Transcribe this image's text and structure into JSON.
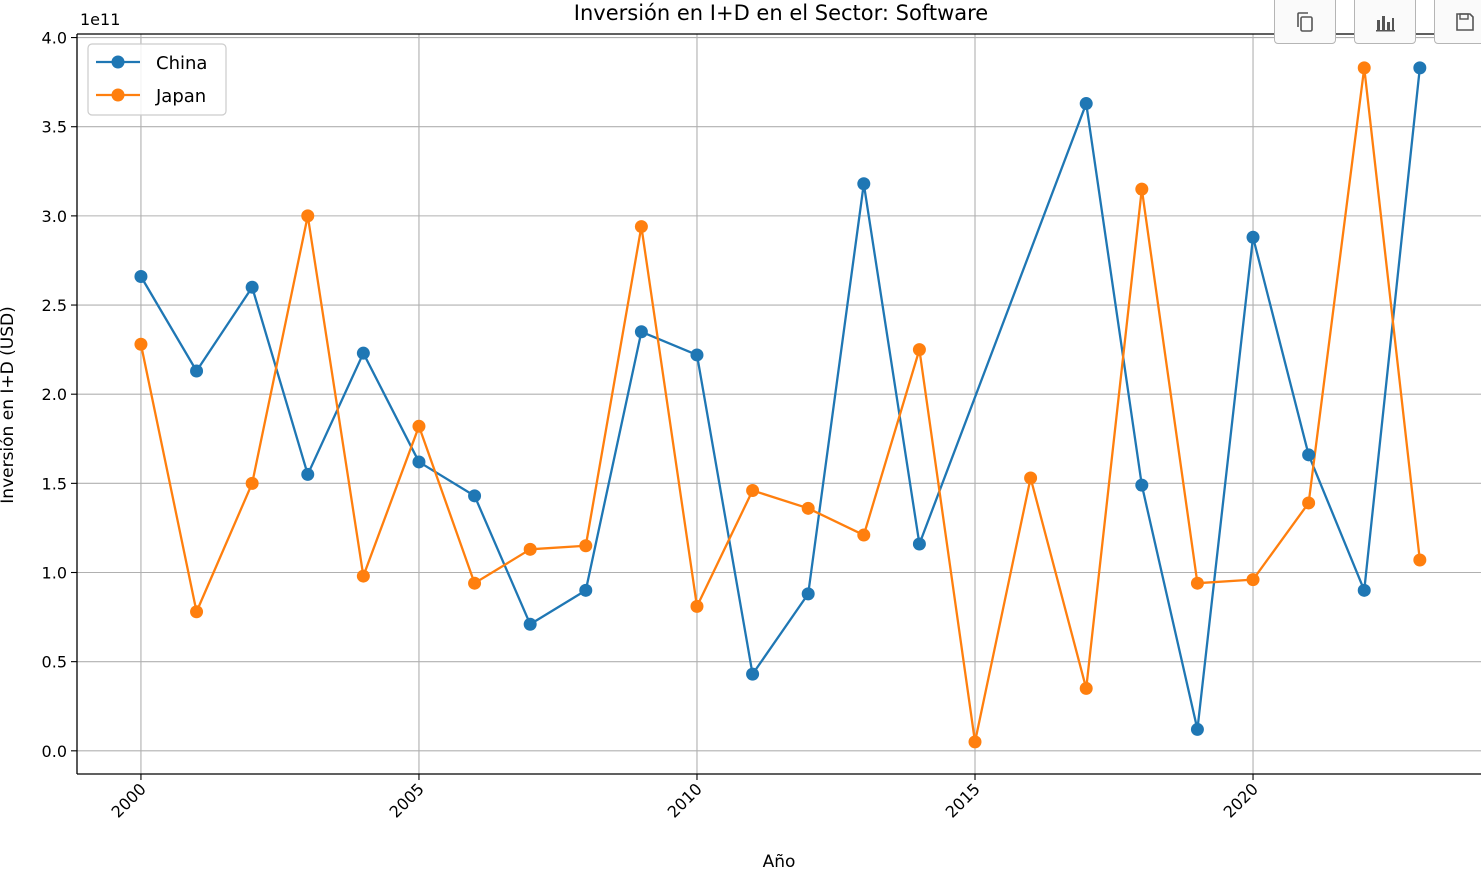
{
  "chart_data": {
    "type": "line",
    "title": "Inversión en I+D en el Sector: Software",
    "xlabel": "Año",
    "ylabel": "Inversión en I+D (USD)",
    "y_offset_label": "1e11",
    "y_scale": 100000000000.0,
    "xlim": [
      1998.85,
      2024.1
    ],
    "ylim": [
      -0.13,
      4.02
    ],
    "x_ticks": [
      2000,
      2005,
      2010,
      2015,
      2020
    ],
    "y_ticks": [
      0.0,
      0.5,
      1.0,
      1.5,
      2.0,
      2.5,
      3.0,
      3.5,
      4.0
    ],
    "y_tick_labels": [
      "0.0",
      "0.5",
      "1.0",
      "1.5",
      "2.0",
      "2.5",
      "3.0",
      "3.5",
      "4.0"
    ],
    "grid": true,
    "legend_position": "top-left",
    "x": [
      2000,
      2001,
      2002,
      2003,
      2004,
      2005,
      2006,
      2007,
      2008,
      2009,
      2010,
      2011,
      2012,
      2013,
      2014,
      2015,
      2016,
      2017,
      2018,
      2019,
      2020,
      2021,
      2022,
      2023
    ],
    "series": [
      {
        "name": "China",
        "color": "#1f77b4",
        "values": [
          2.66,
          2.13,
          2.6,
          1.55,
          2.23,
          1.62,
          1.43,
          0.71,
          0.9,
          2.35,
          2.22,
          0.43,
          0.88,
          3.18,
          1.16,
          null,
          null,
          3.63,
          1.49,
          0.12,
          2.88,
          1.66,
          0.9,
          3.83
        ]
      },
      {
        "name": "Japan",
        "color": "#ff7f0e",
        "values": [
          2.28,
          0.78,
          1.5,
          3.0,
          0.98,
          1.82,
          0.94,
          1.13,
          1.15,
          2.94,
          0.81,
          1.46,
          1.36,
          1.21,
          2.25,
          0.05,
          1.53,
          0.35,
          3.15,
          0.94,
          0.96,
          1.39,
          3.83,
          1.07
        ]
      }
    ]
  },
  "toolbar": {
    "copy_icon": "copy-icon",
    "chart_icon": "bar-chart-icon",
    "save_icon": "save-icon"
  }
}
